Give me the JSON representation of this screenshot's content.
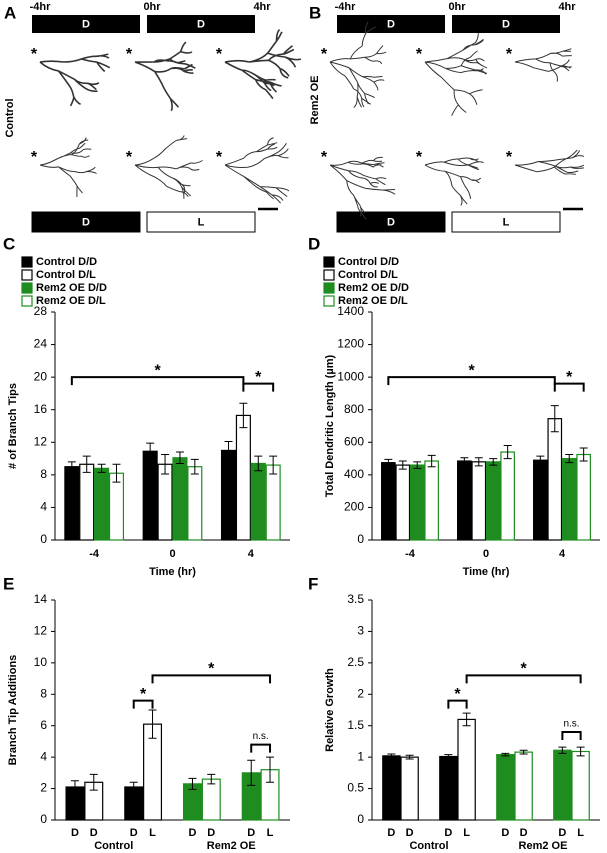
{
  "panels": [
    {
      "letter": "A",
      "times": [
        "-4hr",
        "0hr",
        "4hr"
      ],
      "top_conditions": [
        "D",
        "D"
      ],
      "row_label": "Control",
      "bottom_conditions": [
        "D",
        "L"
      ],
      "marker": "*"
    },
    {
      "letter": "B",
      "times": [
        "-4hr",
        "0hr",
        "4hr"
      ],
      "top_conditions": [
        "D",
        "D"
      ],
      "row_label": "Rem2 OE",
      "bottom_conditions": [
        "D",
        "L"
      ],
      "marker": "*"
    }
  ],
  "chart_data": [
    {
      "panel": "C",
      "type": "grouped_bar",
      "categories": [
        "-4",
        "0",
        "4"
      ],
      "xlabel": "Time (hr)",
      "ylabel": "# of Branch Tips",
      "ylim": [
        0,
        28
      ],
      "yticks": [
        0,
        4,
        8,
        12,
        16,
        20,
        24,
        28
      ],
      "series": [
        {
          "name": "Control D/D",
          "color": "#000000",
          "filled": true,
          "values": [
            9.0,
            10.9,
            11.0
          ],
          "errors": [
            0.6,
            1.0,
            1.1
          ]
        },
        {
          "name": "Control D/L",
          "color": "#000000",
          "filled": false,
          "values": [
            9.3,
            9.3,
            15.3
          ],
          "errors": [
            1.0,
            1.2,
            1.5
          ]
        },
        {
          "name": "Rem2 OE D/D",
          "color": "#1e8c1e",
          "filled": true,
          "values": [
            8.8,
            10.1,
            9.4
          ],
          "errors": [
            0.5,
            0.7,
            0.9
          ]
        },
        {
          "name": "Rem2 OE D/L",
          "color": "#1e8c1e",
          "filled": false,
          "values": [
            8.2,
            9.0,
            9.2
          ],
          "errors": [
            1.1,
            0.9,
            1.1
          ]
        }
      ],
      "annotations": [
        {
          "label": "*",
          "level": 20
        },
        {
          "label": "*",
          "level": 19.2
        }
      ]
    },
    {
      "panel": "D",
      "type": "grouped_bar",
      "categories": [
        "-4",
        "0",
        "4"
      ],
      "xlabel": "Time (hr)",
      "ylabel": "Total Dendritic Length (µm)",
      "ylim": [
        0,
        1400
      ],
      "yticks": [
        0,
        200,
        400,
        600,
        800,
        1000,
        1200,
        1400
      ],
      "series": [
        {
          "name": "Control D/D",
          "color": "#000000",
          "filled": true,
          "values": [
            475,
            485,
            490
          ],
          "errors": [
            20,
            20,
            25
          ]
        },
        {
          "name": "Control D/L",
          "color": "#000000",
          "filled": false,
          "values": [
            460,
            480,
            745
          ],
          "errors": [
            25,
            25,
            80
          ]
        },
        {
          "name": "Rem2 OE D/D",
          "color": "#1e8c1e",
          "filled": true,
          "values": [
            460,
            480,
            500
          ],
          "errors": [
            20,
            20,
            25
          ]
        },
        {
          "name": "Rem2 OE D/L",
          "color": "#1e8c1e",
          "filled": false,
          "values": [
            485,
            540,
            525
          ],
          "errors": [
            35,
            40,
            40
          ]
        }
      ],
      "annotations": [
        {
          "label": "*",
          "level": 1000
        },
        {
          "label": "*",
          "level": 960
        }
      ]
    },
    {
      "panel": "E",
      "type": "bar",
      "categories": [
        "D",
        "D",
        "D",
        "L",
        "D",
        "D",
        "D",
        "L"
      ],
      "groups": [
        "Control",
        "Rem2 OE"
      ],
      "ylabel": "Branch Tip Additions",
      "ylim": [
        0,
        14
      ],
      "yticks": [
        0,
        2,
        4,
        6,
        8,
        10,
        12,
        14
      ],
      "values": [
        2.1,
        2.4,
        2.1,
        6.1,
        2.3,
        2.6,
        3.0,
        3.2
      ],
      "errors": [
        0.4,
        0.5,
        0.3,
        0.9,
        0.35,
        0.3,
        0.8,
        0.8
      ],
      "colors": [
        "#000000",
        "#000000",
        "#000000",
        "#000000",
        "#1e8c1e",
        "#1e8c1e",
        "#1e8c1e",
        "#1e8c1e"
      ],
      "filled": [
        true,
        false,
        true,
        false,
        true,
        false,
        true,
        false
      ],
      "annotations": [
        {
          "label": "*",
          "level": 7.6
        },
        {
          "label": "*",
          "level": 9.2
        },
        {
          "label": "n.s.",
          "level": 4.8
        }
      ]
    },
    {
      "panel": "F",
      "type": "bar",
      "categories": [
        "D",
        "D",
        "D",
        "L",
        "D",
        "D",
        "D",
        "L"
      ],
      "groups": [
        "Control",
        "Rem2 OE"
      ],
      "ylabel": "Relative Growth",
      "ylim": [
        0,
        3.5
      ],
      "yticks": [
        0,
        0.5,
        1,
        1.5,
        2,
        2.5,
        3,
        3.5
      ],
      "values": [
        1.02,
        1.0,
        1.01,
        1.6,
        1.04,
        1.08,
        1.11,
        1.09
      ],
      "errors": [
        0.03,
        0.03,
        0.03,
        0.1,
        0.02,
        0.03,
        0.05,
        0.07
      ],
      "colors": [
        "#000000",
        "#000000",
        "#000000",
        "#000000",
        "#1e8c1e",
        "#1e8c1e",
        "#1e8c1e",
        "#1e8c1e"
      ],
      "filled": [
        true,
        false,
        true,
        false,
        true,
        false,
        true,
        false
      ],
      "annotations": [
        {
          "label": "*",
          "level": 1.9
        },
        {
          "label": "*",
          "level": 2.3
        },
        {
          "label": "n.s.",
          "level": 1.4
        }
      ]
    }
  ]
}
